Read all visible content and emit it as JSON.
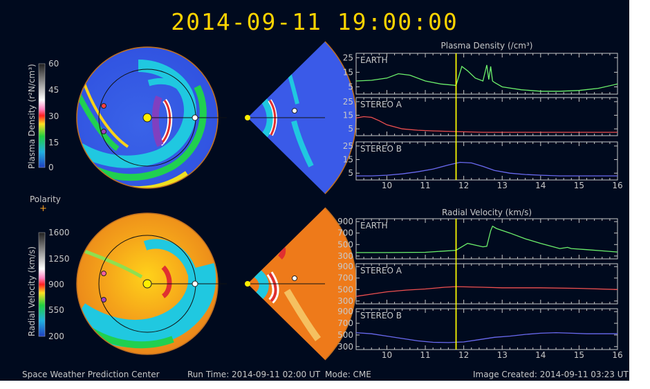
{
  "header": {
    "timestamp": "2014-09-11  19:00:00"
  },
  "footer": {
    "center": "Space Weather Prediction Center",
    "run_time": "Run Time: 2014-09-11 02:00 UT",
    "mode": "Mode: CME",
    "image_created": "Image Created: 2014-09-11 03:23 UT"
  },
  "colors": {
    "background": "#000a1e",
    "title": "#ffd400",
    "earth": "#6cf06c",
    "stereo_a": "#f05050",
    "stereo_b": "#6a6af0",
    "time_marker": "#ffff00"
  },
  "maps": {
    "density": {
      "colorbar_label": "Plasma Density (r²N/cm³)",
      "ticks": [
        "60",
        "45",
        "30",
        "15",
        "0"
      ]
    },
    "polarity": {
      "label": "Polarity",
      "symbol": "+"
    },
    "velocity": {
      "colorbar_label": "Radial Velocity (km/s)",
      "ticks": [
        "1600",
        "1250",
        "900",
        "550",
        "200"
      ]
    }
  },
  "chart_data": [
    {
      "type": "line",
      "title": "Plasma Density (/cm³)",
      "x_ticks": [
        "10",
        "11",
        "12",
        "13",
        "14",
        "15",
        "16"
      ],
      "time_marker_x": 11.8,
      "panels": [
        {
          "name": "EARTH",
          "xlim": [
            9.2,
            16
          ],
          "ylim": [
            0,
            28
          ],
          "y_ticks": [
            "25",
            "15",
            "5"
          ],
          "x": [
            9.2,
            9.6,
            10.0,
            10.3,
            10.6,
            11.0,
            11.4,
            11.8,
            11.95,
            12.1,
            12.3,
            12.5,
            12.6,
            12.65,
            12.7,
            12.75,
            12.8,
            13.0,
            13.5,
            14.0,
            14.5,
            15.0,
            15.5,
            16.0
          ],
          "y": [
            9,
            9.5,
            11,
            14,
            13,
            9,
            7,
            6,
            19,
            16,
            11,
            9,
            20,
            10,
            19,
            9,
            8,
            5,
            3,
            2,
            2,
            2.5,
            4,
            7
          ]
        },
        {
          "name": "STEREO A",
          "xlim": [
            9.2,
            16
          ],
          "ylim": [
            0,
            28
          ],
          "y_ticks": [
            "25",
            "15",
            "5"
          ],
          "x": [
            9.2,
            9.4,
            9.6,
            9.8,
            10.0,
            10.4,
            10.8,
            11.2,
            11.8,
            12.5,
            13,
            14,
            15,
            16
          ],
          "y": [
            13,
            14,
            13.5,
            11,
            8,
            5,
            4,
            3.5,
            3,
            2.5,
            2.5,
            2.5,
            2.5,
            2.5
          ]
        },
        {
          "name": "STEREO B",
          "xlim": [
            9.2,
            16
          ],
          "ylim": [
            0,
            28
          ],
          "y_ticks": [
            "25",
            "15",
            "5"
          ],
          "x": [
            9.2,
            9.6,
            10.0,
            10.4,
            10.8,
            11.2,
            11.6,
            11.9,
            12.2,
            12.5,
            12.8,
            13.2,
            13.6,
            14.0,
            14.5,
            15,
            15.5,
            16
          ],
          "y": [
            3,
            3,
            3.5,
            4.5,
            6,
            8,
            11,
            13,
            12.5,
            10,
            7,
            5,
            4,
            3.5,
            3,
            3,
            3,
            3
          ]
        }
      ]
    },
    {
      "type": "line",
      "title": "Radial Velocity (km/s)",
      "x_ticks": [
        "10",
        "11",
        "12",
        "13",
        "14",
        "15",
        "16"
      ],
      "time_marker_x": 11.8,
      "panels": [
        {
          "name": "EARTH",
          "xlim": [
            9.2,
            16
          ],
          "ylim": [
            250,
            950
          ],
          "y_ticks": [
            "900",
            "700",
            "500",
            "300"
          ],
          "x": [
            9.2,
            10.0,
            11.0,
            11.8,
            11.95,
            12.1,
            12.3,
            12.5,
            12.6,
            12.7,
            12.75,
            12.85,
            13.2,
            13.6,
            14.0,
            14.5,
            14.7,
            14.8,
            15.2,
            15.6,
            16.0
          ],
          "y": [
            360,
            360,
            365,
            400,
            460,
            520,
            490,
            460,
            470,
            740,
            820,
            780,
            700,
            600,
            520,
            430,
            450,
            430,
            410,
            390,
            370
          ]
        },
        {
          "name": "STEREO A",
          "xlim": [
            9.2,
            16
          ],
          "ylim": [
            250,
            950
          ],
          "y_ticks": [
            "900",
            "700",
            "500",
            "300"
          ],
          "x": [
            9.2,
            9.6,
            10.0,
            10.5,
            11.0,
            11.5,
            11.8,
            12.5,
            13,
            14,
            15,
            16
          ],
          "y": [
            380,
            420,
            460,
            490,
            510,
            540,
            550,
            540,
            530,
            530,
            520,
            500
          ]
        },
        {
          "name": "STEREO B",
          "xlim": [
            9.2,
            16
          ],
          "ylim": [
            250,
            950
          ],
          "y_ticks": [
            "900",
            "700",
            "500",
            "300"
          ],
          "x": [
            9.2,
            9.6,
            10.0,
            10.4,
            10.8,
            11.2,
            11.6,
            12.0,
            12.4,
            12.8,
            13.2,
            13.6,
            14.0,
            14.4,
            14.8,
            15.2,
            15.6,
            16.0
          ],
          "y": [
            540,
            520,
            480,
            440,
            400,
            375,
            370,
            380,
            420,
            460,
            480,
            510,
            530,
            540,
            530,
            520,
            520,
            520
          ]
        }
      ]
    }
  ]
}
